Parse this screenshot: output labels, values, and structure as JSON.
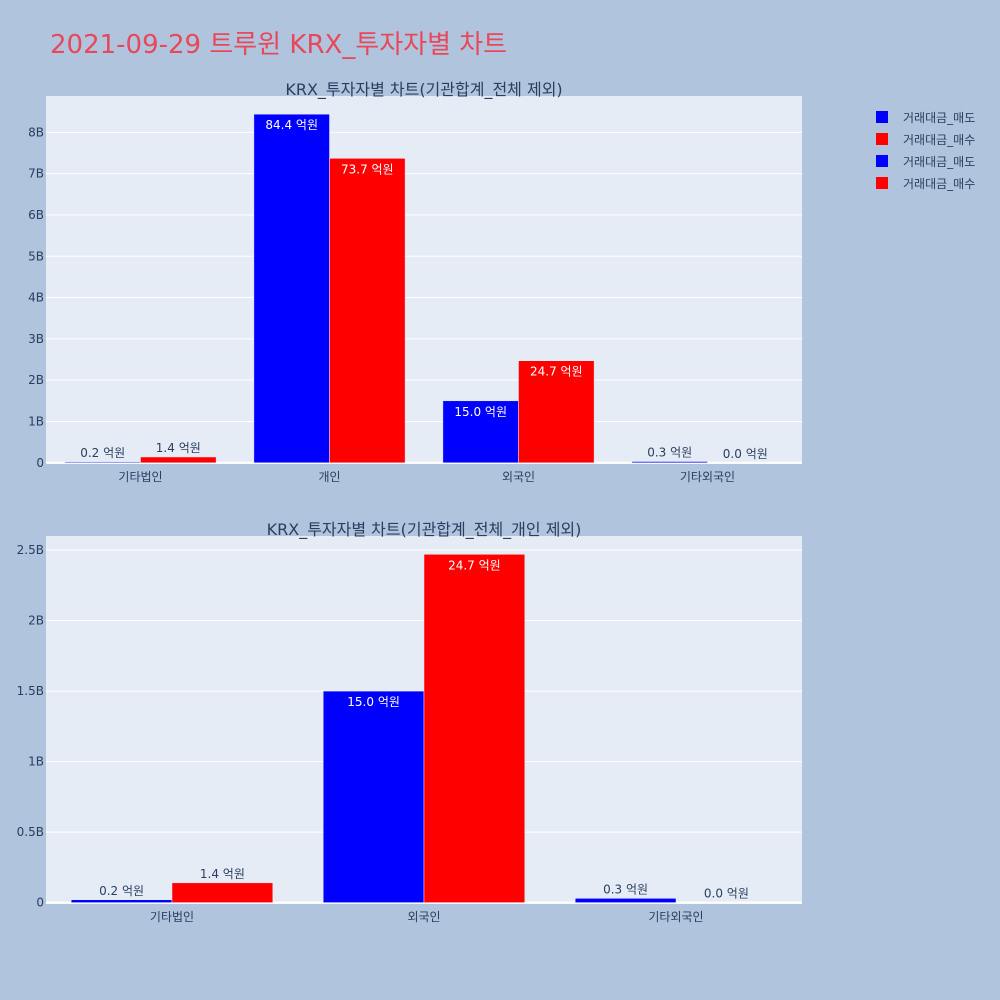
{
  "title": "2021-09-29 트루윈 KRX_투자자별 차트",
  "colors": {
    "sell": "#0000ff",
    "buy": "#ff0000",
    "plot_bg": "#e5ecf6",
    "page_bg": "#b0c4de",
    "text": "#2a3f5f"
  },
  "legend": [
    {
      "label": "거래대금_매도",
      "color": "#0000ff"
    },
    {
      "label": "거래대금_매수",
      "color": "#ff0000"
    },
    {
      "label": "거래대금_매도",
      "color": "#0000ff"
    },
    {
      "label": "거래대금_매수",
      "color": "#ff0000"
    }
  ],
  "chart_data": [
    {
      "type": "bar",
      "title": "KRX_투자자별 차트(기관합계_전체 제외)",
      "categories": [
        "기타법인",
        "개인",
        "외국인",
        "기타외국인"
      ],
      "series": [
        {
          "name": "거래대금_매도",
          "values": [
            20000000,
            8440000000,
            1500000000,
            30000000
          ],
          "labels": [
            "0.2 억원",
            "84.4 억원",
            "15.0 억원",
            "0.3 억원"
          ]
        },
        {
          "name": "거래대금_매수",
          "values": [
            140000000,
            7370000000,
            2470000000,
            0
          ],
          "labels": [
            "1.4 억원",
            "73.7 억원",
            "24.7 억원",
            "0.0 억원"
          ]
        }
      ],
      "yticks": [
        0,
        1000000000,
        2000000000,
        3000000000,
        4000000000,
        5000000000,
        6000000000,
        7000000000,
        8000000000
      ],
      "ytick_labels": [
        "0",
        "1B",
        "2B",
        "3B",
        "4B",
        "5B",
        "6B",
        "7B",
        "8B"
      ],
      "ylim": [
        -30000000,
        8880000000
      ],
      "grid": true
    },
    {
      "type": "bar",
      "title": "KRX_투자자별 차트(기관합계_전체_개인 제외)",
      "categories": [
        "기타법인",
        "외국인",
        "기타외국인"
      ],
      "series": [
        {
          "name": "거래대금_매도",
          "values": [
            20000000,
            1500000000,
            30000000
          ],
          "labels": [
            "0.2 억원",
            "15.0 억원",
            "0.3 억원"
          ]
        },
        {
          "name": "거래대금_매수",
          "values": [
            140000000,
            2470000000,
            0
          ],
          "labels": [
            "1.4 억원",
            "24.7 억원",
            "0.0 억원"
          ]
        }
      ],
      "yticks": [
        0,
        500000000,
        1000000000,
        1500000000,
        2000000000,
        2500000000
      ],
      "ytick_labels": [
        "0",
        "0.5B",
        "1B",
        "1.5B",
        "2B",
        "2.5B"
      ],
      "ylim": [
        -10000000,
        2600000000
      ],
      "grid": true
    }
  ]
}
